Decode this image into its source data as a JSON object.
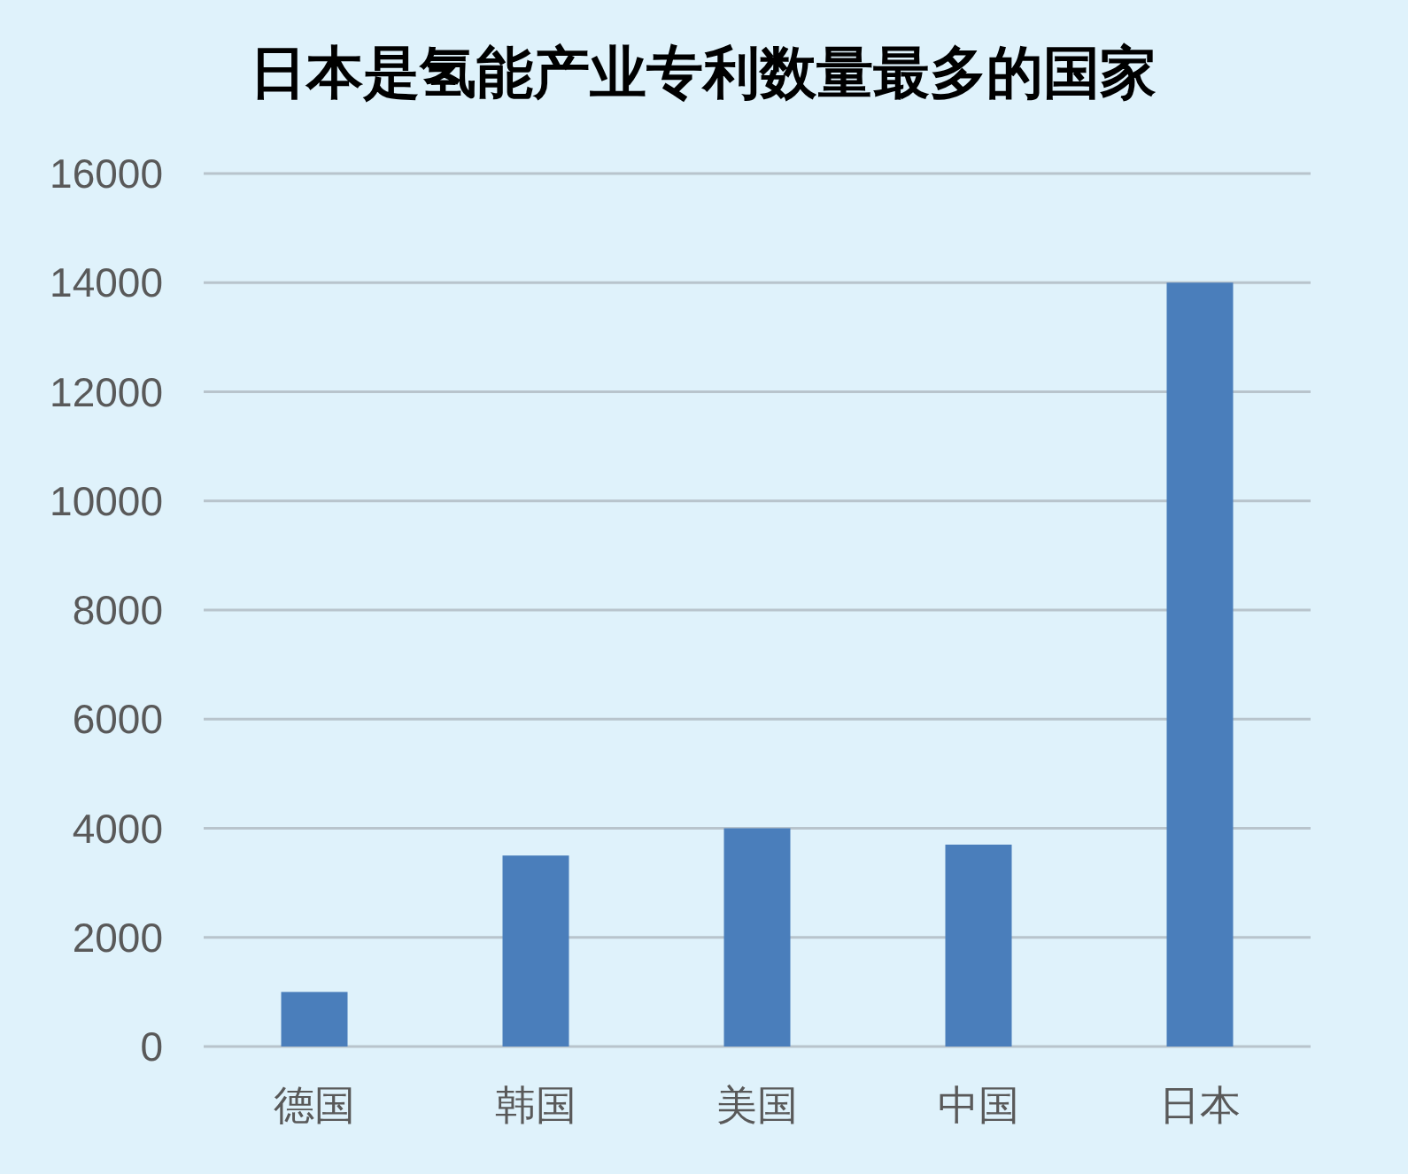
{
  "chart_data": {
    "type": "bar",
    "title": "日本是氢能产业专利数量最多的国家",
    "categories": [
      "德国",
      "韩国",
      "美国",
      "中国",
      "日本"
    ],
    "values": [
      1000,
      3500,
      4000,
      3700,
      14000
    ],
    "color": "#4a7ebb",
    "ylim": [
      0,
      16000
    ],
    "yticks": [
      0,
      2000,
      4000,
      6000,
      8000,
      10000,
      12000,
      14000,
      16000
    ],
    "grid": "y"
  }
}
